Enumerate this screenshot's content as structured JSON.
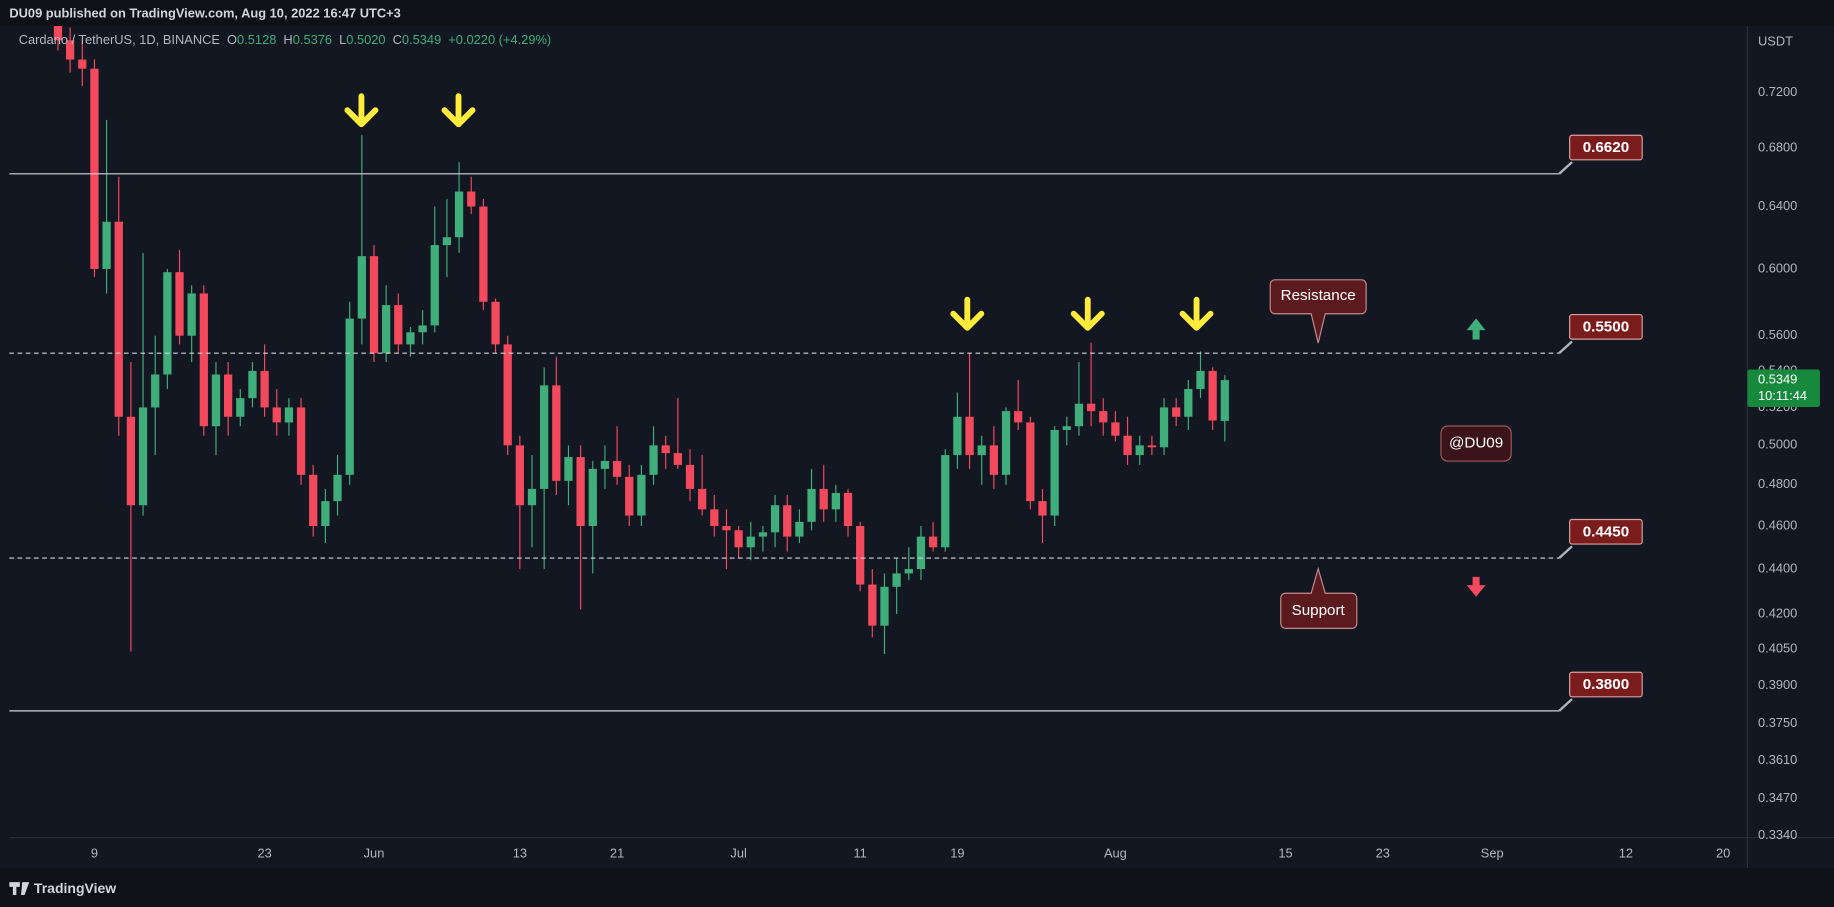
{
  "header": {
    "published": "DU09 published on TradingView.com, Aug 10, 2022 16:47 UTC+3"
  },
  "chart_data": {
    "type": "candlestick",
    "symbol": "Cardano / TetherUS, 1D, BINANCE",
    "ohlc_legend": [
      {
        "label": "O",
        "value": "0.5128"
      },
      {
        "label": "H",
        "value": "0.5376"
      },
      {
        "label": "L",
        "value": "0.5020"
      },
      {
        "label": "C",
        "value": "0.5349"
      }
    ],
    "change": "+0.0220 (+4.29%)",
    "currency": "USDT",
    "x": [
      "2022-05-06",
      "2022-05-07",
      "2022-05-08",
      "2022-05-09",
      "2022-05-10",
      "2022-05-11",
      "2022-05-12",
      "2022-05-13",
      "2022-05-14",
      "2022-05-15",
      "2022-05-16",
      "2022-05-17",
      "2022-05-18",
      "2022-05-19",
      "2022-05-20",
      "2022-05-21",
      "2022-05-22",
      "2022-05-23",
      "2022-05-24",
      "2022-05-25",
      "2022-05-26",
      "2022-05-27",
      "2022-05-28",
      "2022-05-29",
      "2022-05-30",
      "2022-05-31",
      "2022-06-01",
      "2022-06-02",
      "2022-06-03",
      "2022-06-04",
      "2022-06-05",
      "2022-06-06",
      "2022-06-07",
      "2022-06-08",
      "2022-06-09",
      "2022-06-10",
      "2022-06-11",
      "2022-06-12",
      "2022-06-13",
      "2022-06-14",
      "2022-06-15",
      "2022-06-16",
      "2022-06-17",
      "2022-06-18",
      "2022-06-19",
      "2022-06-20",
      "2022-06-21",
      "2022-06-22",
      "2022-06-23",
      "2022-06-24",
      "2022-06-25",
      "2022-06-26",
      "2022-06-27",
      "2022-06-28",
      "2022-06-29",
      "2022-06-30",
      "2022-07-01",
      "2022-07-02",
      "2022-07-03",
      "2022-07-04",
      "2022-07-05",
      "2022-07-06",
      "2022-07-07",
      "2022-07-08",
      "2022-07-09",
      "2022-07-10",
      "2022-07-11",
      "2022-07-12",
      "2022-07-13",
      "2022-07-14",
      "2022-07-15",
      "2022-07-16",
      "2022-07-17",
      "2022-07-18",
      "2022-07-19",
      "2022-07-20",
      "2022-07-21",
      "2022-07-22",
      "2022-07-23",
      "2022-07-24",
      "2022-07-25",
      "2022-07-26",
      "2022-07-27",
      "2022-07-28",
      "2022-07-29",
      "2022-07-30",
      "2022-07-31",
      "2022-08-01",
      "2022-08-02",
      "2022-08-03",
      "2022-08-04",
      "2022-08-05",
      "2022-08-06",
      "2022-08-07",
      "2022-08-08",
      "2022-08-09",
      "2022-08-10"
    ],
    "open": [
      0.79,
      0.76,
      0.745,
      0.738,
      0.6,
      0.63,
      0.515,
      0.47,
      0.52,
      0.538,
      0.598,
      0.56,
      0.585,
      0.51,
      0.538,
      0.515,
      0.525,
      0.54,
      0.52,
      0.512,
      0.52,
      0.485,
      0.46,
      0.472,
      0.485,
      0.57,
      0.608,
      0.55,
      0.578,
      0.555,
      0.562,
      0.566,
      0.615,
      0.62,
      0.65,
      0.64,
      0.58,
      0.555,
      0.5,
      0.47,
      0.478,
      0.532,
      0.482,
      0.494,
      0.46,
      0.488,
      0.492,
      0.484,
      0.465,
      0.485,
      0.5,
      0.496,
      0.49,
      0.478,
      0.468,
      0.46,
      0.458,
      0.45,
      0.455,
      0.457,
      0.47,
      0.455,
      0.462,
      0.478,
      0.468,
      0.476,
      0.46,
      0.433,
      0.415,
      0.432,
      0.438,
      0.44,
      0.455,
      0.45,
      0.495,
      0.515,
      0.495,
      0.5,
      0.485,
      0.518,
      0.512,
      0.472,
      0.465,
      0.508,
      0.51,
      0.522,
      0.518,
      0.512,
      0.505,
      0.495,
      0.5,
      0.499,
      0.52,
      0.515,
      0.53,
      0.54,
      0.5128
    ],
    "high": [
      0.8,
      0.77,
      0.76,
      0.745,
      0.7,
      0.66,
      0.545,
      0.61,
      0.56,
      0.6,
      0.612,
      0.59,
      0.59,
      0.545,
      0.545,
      0.53,
      0.545,
      0.555,
      0.53,
      0.525,
      0.525,
      0.49,
      0.478,
      0.495,
      0.58,
      0.689,
      0.615,
      0.59,
      0.585,
      0.565,
      0.575,
      0.64,
      0.645,
      0.67,
      0.66,
      0.645,
      0.582,
      0.56,
      0.505,
      0.495,
      0.542,
      0.548,
      0.5,
      0.5,
      0.492,
      0.5,
      0.51,
      0.49,
      0.49,
      0.51,
      0.505,
      0.525,
      0.498,
      0.495,
      0.475,
      0.468,
      0.46,
      0.462,
      0.46,
      0.475,
      0.475,
      0.468,
      0.488,
      0.49,
      0.48,
      0.478,
      0.462,
      0.44,
      0.438,
      0.445,
      0.45,
      0.46,
      0.462,
      0.498,
      0.528,
      0.55,
      0.505,
      0.51,
      0.52,
      0.535,
      0.515,
      0.478,
      0.51,
      0.515,
      0.545,
      0.556,
      0.525,
      0.518,
      0.515,
      0.505,
      0.505,
      0.525,
      0.525,
      0.535,
      0.551,
      0.542,
      0.5376
    ],
    "low": [
      0.752,
      0.735,
      0.725,
      0.595,
      0.585,
      0.505,
      0.404,
      0.465,
      0.495,
      0.53,
      0.555,
      0.545,
      0.505,
      0.495,
      0.505,
      0.51,
      0.52,
      0.515,
      0.505,
      0.505,
      0.48,
      0.455,
      0.452,
      0.465,
      0.48,
      0.555,
      0.545,
      0.545,
      0.55,
      0.548,
      0.555,
      0.562,
      0.595,
      0.61,
      0.635,
      0.575,
      0.55,
      0.495,
      0.44,
      0.45,
      0.44,
      0.475,
      0.47,
      0.422,
      0.438,
      0.478,
      0.48,
      0.46,
      0.46,
      0.48,
      0.488,
      0.488,
      0.472,
      0.465,
      0.455,
      0.44,
      0.445,
      0.444,
      0.448,
      0.45,
      0.448,
      0.452,
      0.458,
      0.462,
      0.462,
      0.455,
      0.43,
      0.41,
      0.403,
      0.42,
      0.435,
      0.435,
      0.448,
      0.448,
      0.488,
      0.488,
      0.48,
      0.478,
      0.48,
      0.508,
      0.468,
      0.452,
      0.46,
      0.5,
      0.505,
      0.51,
      0.505,
      0.502,
      0.49,
      0.49,
      0.495,
      0.495,
      0.51,
      0.508,
      0.525,
      0.508,
      0.502
    ],
    "close": [
      0.76,
      0.745,
      0.738,
      0.6,
      0.63,
      0.515,
      0.47,
      0.52,
      0.538,
      0.598,
      0.56,
      0.585,
      0.51,
      0.538,
      0.515,
      0.525,
      0.54,
      0.52,
      0.512,
      0.52,
      0.485,
      0.46,
      0.472,
      0.485,
      0.57,
      0.608,
      0.55,
      0.578,
      0.555,
      0.562,
      0.566,
      0.615,
      0.62,
      0.65,
      0.64,
      0.58,
      0.555,
      0.5,
      0.47,
      0.478,
      0.532,
      0.482,
      0.494,
      0.46,
      0.488,
      0.492,
      0.484,
      0.465,
      0.485,
      0.5,
      0.496,
      0.49,
      0.478,
      0.468,
      0.46,
      0.458,
      0.45,
      0.455,
      0.457,
      0.47,
      0.455,
      0.462,
      0.478,
      0.468,
      0.476,
      0.46,
      0.433,
      0.415,
      0.432,
      0.438,
      0.44,
      0.455,
      0.45,
      0.495,
      0.515,
      0.495,
      0.5,
      0.485,
      0.518,
      0.512,
      0.472,
      0.465,
      0.508,
      0.51,
      0.522,
      0.518,
      0.512,
      0.505,
      0.495,
      0.5,
      0.499,
      0.52,
      0.515,
      0.53,
      0.54,
      0.513,
      0.5349
    ],
    "up_color": "#3fae7a",
    "down_color": "#f2495c",
    "log_scale": true,
    "grid": false,
    "xlim": [
      "2022-05-02",
      "2022-09-22"
    ],
    "xticks": [
      {
        "value": "2022-05-09",
        "label": "9"
      },
      {
        "value": "2022-05-23",
        "label": "23"
      },
      {
        "value": "2022-06-01",
        "label": "Jun"
      },
      {
        "value": "2022-06-13",
        "label": "13"
      },
      {
        "value": "2022-06-21",
        "label": "21"
      },
      {
        "value": "2022-07-01",
        "label": "Jul"
      },
      {
        "value": "2022-07-11",
        "label": "11"
      },
      {
        "value": "2022-07-19",
        "label": "19"
      },
      {
        "value": "2022-08-01",
        "label": "Aug"
      },
      {
        "value": "2022-08-15",
        "label": "15"
      },
      {
        "value": "2022-08-23",
        "label": "23"
      },
      {
        "value": "2022-09-01",
        "label": "Sep"
      },
      {
        "value": "2022-09-12",
        "label": "12"
      },
      {
        "value": "2022-09-20",
        "label": "20"
      }
    ],
    "ylim": [
      0.3333,
      0.7713
    ],
    "yticks": [
      {
        "value": 0.72,
        "label": "0.7200"
      },
      {
        "value": 0.68,
        "label": "0.6800"
      },
      {
        "value": 0.64,
        "label": "0.6400"
      },
      {
        "value": 0.6,
        "label": "0.6000"
      },
      {
        "value": 0.56,
        "label": "0.5600"
      },
      {
        "value": 0.54,
        "label": "0.5400"
      },
      {
        "value": 0.52,
        "label": "0.5200"
      },
      {
        "value": 0.5,
        "label": "0.5000"
      },
      {
        "value": 0.48,
        "label": "0.4800"
      },
      {
        "value": 0.46,
        "label": "0.4600"
      },
      {
        "value": 0.44,
        "label": "0.4400"
      },
      {
        "value": 0.42,
        "label": "0.4200"
      },
      {
        "value": 0.405,
        "label": "0.4050"
      },
      {
        "value": 0.39,
        "label": "0.3900"
      },
      {
        "value": 0.375,
        "label": "0.3750"
      },
      {
        "value": 0.361,
        "label": "0.3610"
      },
      {
        "value": 0.347,
        "label": "0.3470"
      },
      {
        "value": 0.334,
        "label": "0.3340"
      }
    ],
    "last_price": {
      "value": 0.5349,
      "label": "0.5349",
      "countdown": "10:11:44",
      "color": "#17893d"
    },
    "levels": [
      {
        "value": 0.662,
        "label": "0.6620",
        "dashed": false
      },
      {
        "value": 0.55,
        "label": "0.5500",
        "dashed": true
      },
      {
        "value": 0.445,
        "label": "0.4450",
        "dashed": true
      },
      {
        "value": 0.38,
        "label": "0.3800",
        "dashed": false
      }
    ],
    "annotations": [
      "Resistance",
      "Support",
      "@DU09"
    ]
  },
  "footer": {
    "brand": "TradingView"
  }
}
